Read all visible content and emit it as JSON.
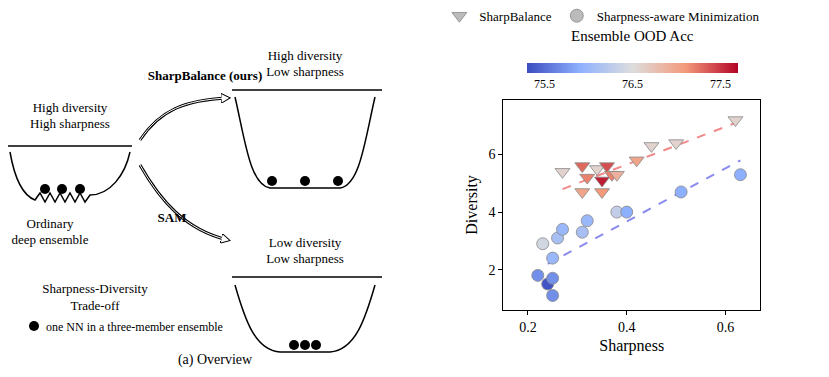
{
  "diagram": {
    "left": {
      "labels": [
        "High diversity",
        "High sharpness"
      ],
      "caption": [
        "Ordinary",
        "deep ensemble"
      ]
    },
    "arrows": [
      {
        "label": "SharpBalance (ours)"
      },
      {
        "label": "SAM"
      }
    ],
    "top_right": {
      "labels": [
        "High diversity",
        "Low sharpness"
      ]
    },
    "bottom_right": {
      "labels": [
        "Low diversity",
        "Low sharpness"
      ]
    },
    "tradeoff": [
      "Sharpness-Diversity",
      "Trade-off"
    ],
    "key": "one NN in a three-member ensemble",
    "caption": "(a) Overview"
  },
  "chart_data": {
    "type": "scatter",
    "xlabel": "Sharpness",
    "ylabel": "Diversity",
    "xlim": [
      0.15,
      0.67
    ],
    "xticks": [
      0.2,
      0.4,
      0.6
    ],
    "ylim": [
      0.6,
      7.9
    ],
    "yticks": [
      2,
      4,
      6
    ],
    "grid": false,
    "legend": "top",
    "colorbar": {
      "title": "Ensemble OOD Acc",
      "range": [
        75.3,
        77.7
      ],
      "ticks": [
        75.5,
        76.5,
        77.5
      ]
    },
    "series": [
      {
        "name": "SharpBalance",
        "marker": "triangle-down",
        "color": "#bbbbbb",
        "x": [
          0.27,
          0.31,
          0.31,
          0.32,
          0.34,
          0.35,
          0.35,
          0.36,
          0.37,
          0.38,
          0.42,
          0.45,
          0.5,
          0.62
        ],
        "y": [
          5.4,
          4.7,
          5.6,
          5.2,
          5.5,
          4.7,
          5.1,
          5.6,
          5.3,
          5.3,
          5.8,
          6.3,
          6.4,
          7.2
        ],
        "acc": [
          76.6,
          77.0,
          77.3,
          77.2,
          76.6,
          77.1,
          77.6,
          77.4,
          77.2,
          76.9,
          77.0,
          76.6,
          76.6,
          76.6
        ],
        "trend": {
          "x": [
            0.27,
            0.62
          ],
          "y": [
            4.8,
            7.1
          ],
          "color": "#f08a8a",
          "line_style": "dash"
        }
      },
      {
        "name": "Sharpness-aware Minimization",
        "marker": "circle",
        "color": "#bbbbbb",
        "x": [
          0.23,
          0.22,
          0.24,
          0.25,
          0.25,
          0.25,
          0.26,
          0.27,
          0.31,
          0.32,
          0.38,
          0.4,
          0.51,
          0.63
        ],
        "y": [
          2.9,
          1.8,
          1.5,
          1.1,
          1.7,
          2.4,
          3.1,
          3.4,
          3.3,
          3.7,
          4.0,
          4.0,
          4.7,
          5.3
        ],
        "acc": [
          76.4,
          75.7,
          75.35,
          75.7,
          75.7,
          76.0,
          76.1,
          76.0,
          76.1,
          76.0,
          76.3,
          75.9,
          75.9,
          75.9
        ],
        "trend": {
          "x": [
            0.24,
            0.63
          ],
          "y": [
            2.2,
            5.8
          ],
          "color": "#8a8af0",
          "line_style": "dash"
        }
      }
    ]
  }
}
